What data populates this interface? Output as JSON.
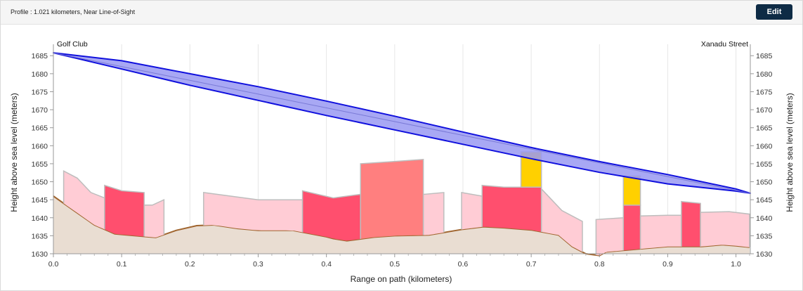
{
  "header": {
    "title": "Profile : 1.021 kilometers, Near Line-of-Sight",
    "edit_label": "Edit"
  },
  "chart_data": {
    "type": "area",
    "title": "",
    "xlabel": "Range on path (kilometers)",
    "ylabel": "Height above sea level (meters)",
    "xlim": [
      0,
      1.021
    ],
    "ylim": [
      1630,
      1687
    ],
    "x_ticks": [
      "0.0",
      "0.1",
      "0.2",
      "0.3",
      "0.4",
      "0.5",
      "0.6",
      "0.7",
      "0.8",
      "0.9",
      "1.0"
    ],
    "y_ticks": [
      "1630",
      "1635",
      "1640",
      "1645",
      "1650",
      "1655",
      "1660",
      "1665",
      "1670",
      "1675",
      "1680",
      "1685"
    ],
    "grid": "vertical",
    "endpoints": {
      "start": "Golf Club",
      "end": "Xanadu Street"
    },
    "colors": {
      "terrain": "#e9ddd2",
      "terrain_line": "#a0652f",
      "clutter_light": "#ffccd5",
      "clutter_dark": "#ff4f6e",
      "clutter_medium": "#ff7f7f",
      "obstruction": "#ffd000",
      "fresnel_fill": "#9999f2",
      "fresnel_line": "#1010dd",
      "clutter_outline": "#bdbdbd"
    },
    "terrain": [
      [
        0.0,
        1646
      ],
      [
        0.03,
        1642
      ],
      [
        0.06,
        1638
      ],
      [
        0.09,
        1635.5
      ],
      [
        0.12,
        1635
      ],
      [
        0.15,
        1634.5
      ],
      [
        0.18,
        1636.5
      ],
      [
        0.21,
        1637.8
      ],
      [
        0.235,
        1638
      ],
      [
        0.27,
        1637
      ],
      [
        0.3,
        1636.5
      ],
      [
        0.35,
        1636.5
      ],
      [
        0.4,
        1634.7
      ],
      [
        0.41,
        1634.2
      ],
      [
        0.43,
        1633.6
      ],
      [
        0.47,
        1634.6
      ],
      [
        0.5,
        1635
      ],
      [
        0.55,
        1635.2
      ],
      [
        0.6,
        1636.8
      ],
      [
        0.63,
        1637.5
      ],
      [
        0.66,
        1637.2
      ],
      [
        0.7,
        1636.6
      ],
      [
        0.74,
        1635.2
      ],
      [
        0.76,
        1632
      ],
      [
        0.78,
        1630
      ],
      [
        0.8,
        1629.5
      ],
      [
        0.81,
        1630.5
      ],
      [
        0.87,
        1631.5
      ],
      [
        0.9,
        1632
      ],
      [
        0.95,
        1632
      ],
      [
        0.98,
        1632.5
      ],
      [
        1.0,
        1632.2
      ],
      [
        1.02,
        1631.8
      ]
    ],
    "clutter": [
      {
        "x0": 0.015,
        "x1": 0.075,
        "top": [
          [
            0.015,
            1653
          ],
          [
            0.035,
            1651
          ],
          [
            0.055,
            1647
          ],
          [
            0.075,
            1645.5
          ]
        ],
        "color": "light"
      },
      {
        "x0": 0.075,
        "x1": 0.133,
        "top": [
          [
            0.075,
            1649
          ],
          [
            0.1,
            1647.5
          ],
          [
            0.133,
            1647
          ]
        ],
        "color": "dark"
      },
      {
        "x0": 0.133,
        "x1": 0.162,
        "top": [
          [
            0.133,
            1643.5
          ],
          [
            0.145,
            1643.5
          ],
          [
            0.162,
            1645
          ]
        ],
        "color": "light"
      },
      {
        "x0": 0.22,
        "x1": 0.365,
        "top": [
          [
            0.22,
            1647
          ],
          [
            0.3,
            1645
          ],
          [
            0.365,
            1645
          ]
        ],
        "color": "light"
      },
      {
        "x0": 0.365,
        "x1": 0.45,
        "top": [
          [
            0.365,
            1647.5
          ],
          [
            0.41,
            1645.5
          ],
          [
            0.45,
            1646.5
          ]
        ],
        "color": "dark"
      },
      {
        "x0": 0.45,
        "x1": 0.542,
        "top": [
          [
            0.45,
            1655
          ],
          [
            0.49,
            1655.5
          ],
          [
            0.542,
            1656.2
          ]
        ],
        "color": "medium"
      },
      {
        "x0": 0.542,
        "x1": 0.572,
        "top": [
          [
            0.542,
            1646.5
          ],
          [
            0.572,
            1647
          ]
        ],
        "color": "light"
      },
      {
        "x0": 0.598,
        "x1": 0.628,
        "top": [
          [
            0.598,
            1647
          ],
          [
            0.628,
            1646
          ]
        ],
        "color": "light"
      },
      {
        "x0": 0.628,
        "x1": 0.715,
        "top": [
          [
            0.628,
            1649
          ],
          [
            0.66,
            1648.5
          ],
          [
            0.715,
            1648.5
          ]
        ],
        "color": "dark"
      },
      {
        "x0": 0.715,
        "x1": 0.775,
        "top": [
          [
            0.715,
            1648
          ],
          [
            0.745,
            1642
          ],
          [
            0.775,
            1639
          ]
        ],
        "color": "light"
      },
      {
        "x0": 0.795,
        "x1": 0.835,
        "top": [
          [
            0.795,
            1639.5
          ],
          [
            0.835,
            1640
          ]
        ],
        "color": "light"
      },
      {
        "x0": 0.835,
        "x1": 0.86,
        "top": [
          [
            0.835,
            1643.5
          ],
          [
            0.86,
            1643.5
          ]
        ],
        "color": "dark"
      },
      {
        "x0": 0.86,
        "x1": 0.92,
        "top": [
          [
            0.86,
            1640.5
          ],
          [
            0.9,
            1640.7
          ],
          [
            0.92,
            1640.7
          ]
        ],
        "color": "light"
      },
      {
        "x0": 0.92,
        "x1": 0.948,
        "top": [
          [
            0.92,
            1644.5
          ],
          [
            0.948,
            1644
          ]
        ],
        "color": "dark"
      },
      {
        "x0": 0.948,
        "x1": 1.02,
        "top": [
          [
            0.948,
            1641.5
          ],
          [
            0.99,
            1641.7
          ],
          [
            1.02,
            1641
          ]
        ],
        "color": "light"
      }
    ],
    "obstructions": [
      {
        "x0": 0.685,
        "x1": 0.715,
        "bottom": 1648.5,
        "top": 1658.3
      },
      {
        "x0": 0.835,
        "x1": 0.86,
        "bottom": 1643.5,
        "top": 1651.6
      }
    ],
    "fresnel": {
      "start": [
        0.0,
        1685.8
      ],
      "end": [
        1.021,
        1646.8
      ],
      "upper": [
        [
          0.0,
          1685.8
        ],
        [
          0.1,
          1683.6
        ],
        [
          0.2,
          1680.0
        ],
        [
          0.3,
          1676.4
        ],
        [
          0.4,
          1672.4
        ],
        [
          0.5,
          1668.2
        ],
        [
          0.6,
          1663.8
        ],
        [
          0.7,
          1659.5
        ],
        [
          0.8,
          1655.6
        ],
        [
          0.9,
          1652.0
        ],
        [
          1.0,
          1648.0
        ],
        [
          1.021,
          1646.8
        ]
      ],
      "lower": [
        [
          0.0,
          1685.8
        ],
        [
          0.1,
          1681.3
        ],
        [
          0.2,
          1676.8
        ],
        [
          0.3,
          1672.6
        ],
        [
          0.4,
          1668.4
        ],
        [
          0.5,
          1664.4
        ],
        [
          0.6,
          1660.4
        ],
        [
          0.7,
          1656.4
        ],
        [
          0.8,
          1652.6
        ],
        [
          0.9,
          1649.4
        ],
        [
          1.0,
          1647.4
        ],
        [
          1.021,
          1646.8
        ]
      ]
    }
  }
}
